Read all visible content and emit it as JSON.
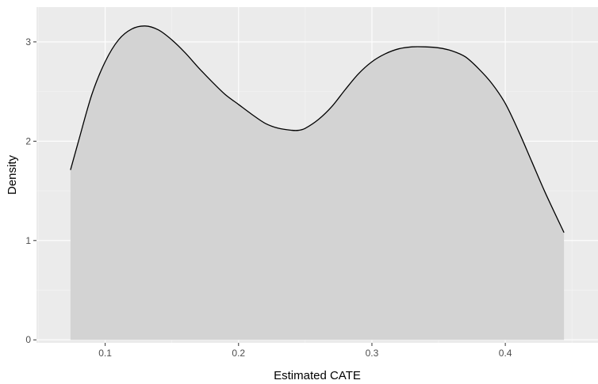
{
  "chart_data": {
    "type": "area",
    "xlabel": "Estimated CATE",
    "ylabel": "Density",
    "xlim": [
      0.0485,
      0.4695
    ],
    "ylim": [
      -0.03,
      3.35
    ],
    "x_ticks": [
      0.1,
      0.2,
      0.3,
      0.4
    ],
    "x_tick_labels": [
      "0.1",
      "0.2",
      "0.3",
      "0.4"
    ],
    "y_ticks": [
      0,
      1,
      2,
      3
    ],
    "y_tick_labels": [
      "0",
      "1",
      "2",
      "3"
    ],
    "grid": true,
    "fill_color": "#d3d3d3",
    "line_color": "#000000",
    "panel_color": "#ebebeb",
    "series": [
      {
        "x": [
          0.074,
          0.08,
          0.09,
          0.1,
          0.11,
          0.12,
          0.13,
          0.14,
          0.15,
          0.16,
          0.17,
          0.18,
          0.19,
          0.2,
          0.21,
          0.22,
          0.23,
          0.24,
          0.245,
          0.25,
          0.26,
          0.27,
          0.28,
          0.29,
          0.3,
          0.31,
          0.32,
          0.33,
          0.34,
          0.35,
          0.36,
          0.37,
          0.38,
          0.39,
          0.4,
          0.41,
          0.42,
          0.43,
          0.444
        ],
        "y": [
          1.71,
          2.0,
          2.47,
          2.8,
          3.02,
          3.13,
          3.16,
          3.12,
          3.02,
          2.89,
          2.74,
          2.6,
          2.47,
          2.37,
          2.27,
          2.18,
          2.13,
          2.11,
          2.11,
          2.13,
          2.22,
          2.35,
          2.52,
          2.68,
          2.8,
          2.88,
          2.93,
          2.95,
          2.95,
          2.94,
          2.91,
          2.85,
          2.73,
          2.58,
          2.38,
          2.1,
          1.79,
          1.48,
          1.08
        ]
      }
    ]
  }
}
